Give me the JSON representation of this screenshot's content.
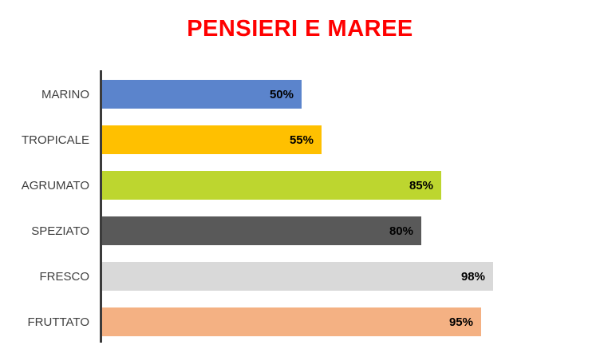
{
  "chart_data": {
    "type": "bar",
    "orientation": "horizontal",
    "title": "PENSIERI E MAREE",
    "title_color": "#FF0000",
    "categories": [
      "MARINO",
      "TROPICALE",
      "AGRUMATO",
      "SPEZIATO",
      "FRESCO",
      "FRUTTATO"
    ],
    "values": [
      50,
      55,
      85,
      80,
      98,
      95
    ],
    "value_labels": [
      "50%",
      "55%",
      "85%",
      "80%",
      "98%",
      "95%"
    ],
    "bar_colors": [
      "#5B84CC",
      "#FFC000",
      "#BDD62F",
      "#595959",
      "#D9D9D9",
      "#F4B183"
    ],
    "xlim": [
      0,
      100
    ],
    "xlabel": "",
    "ylabel": "",
    "grid": false,
    "legend": false,
    "value_label_position": "inside-end",
    "value_label_color": "#000000",
    "category_label_color": "#404040",
    "axis_color": "#3B3B3B",
    "background_color": "#FFFFFF"
  }
}
